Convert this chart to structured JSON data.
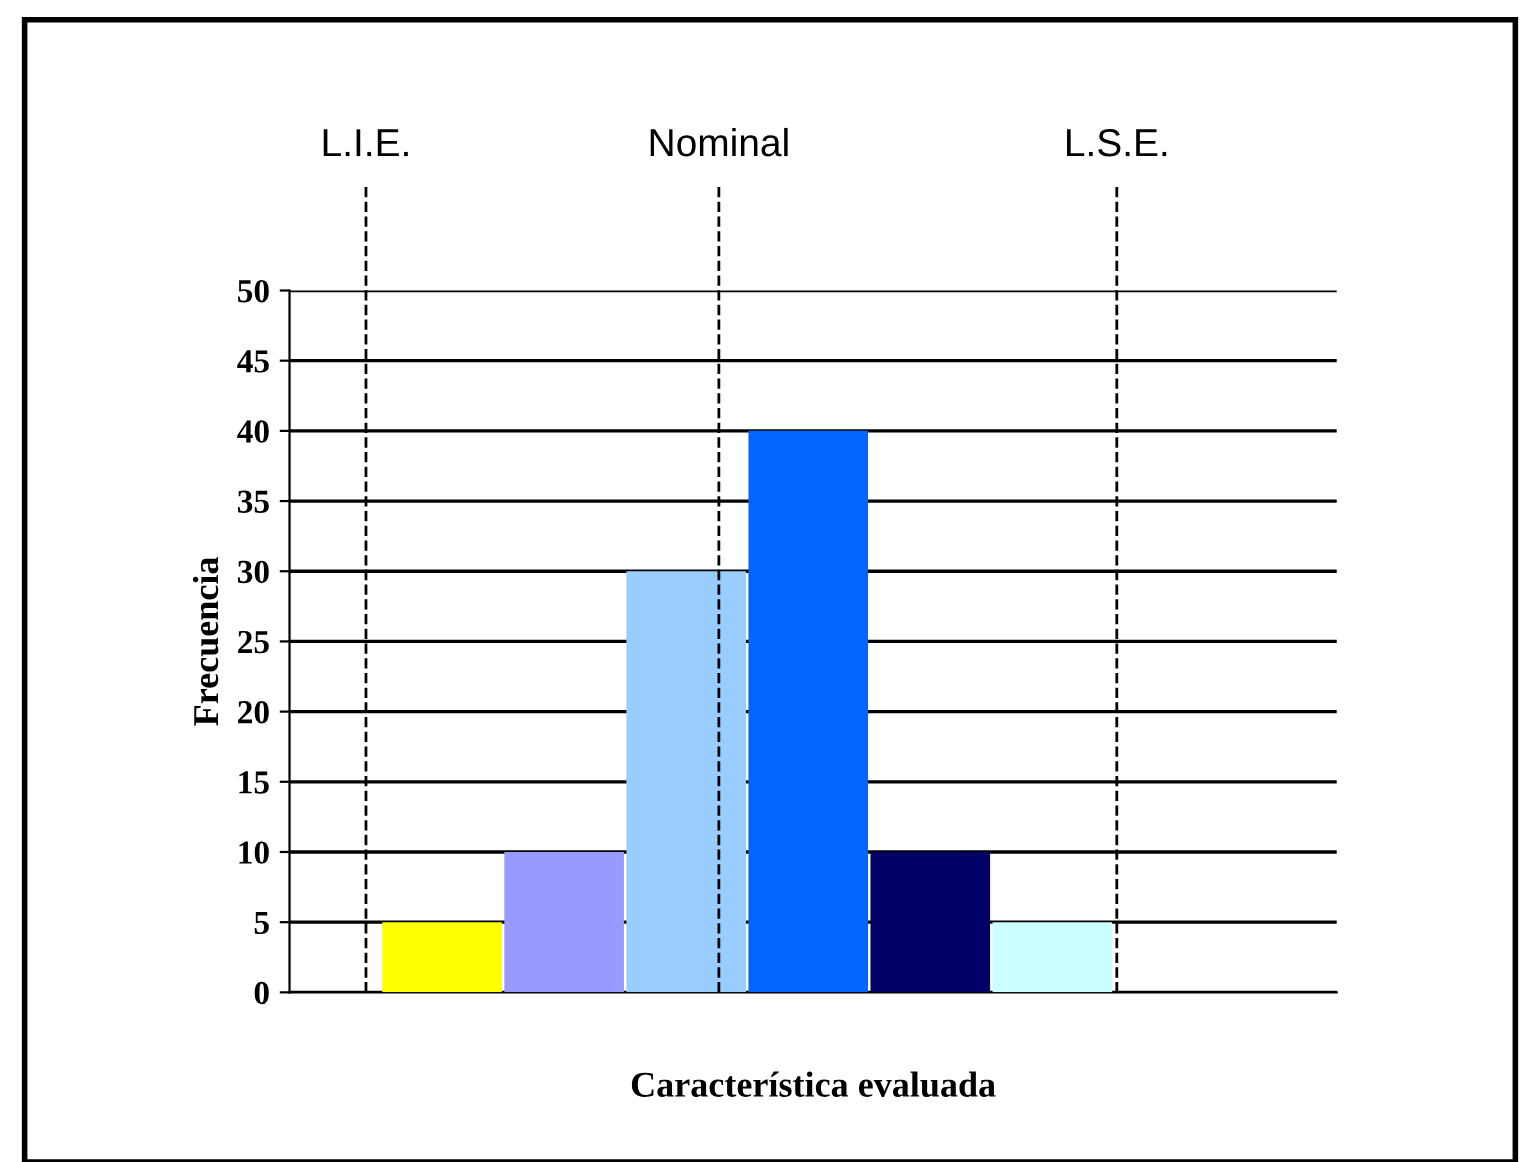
{
  "chart_data": {
    "type": "bar",
    "xlabel": "Característica evaluada",
    "ylabel": "Frecuencia",
    "categories": [
      null,
      null,
      null,
      null,
      null,
      null
    ],
    "values": [
      5,
      10,
      30,
      40,
      10,
      5
    ],
    "colors": [
      "#ffff00",
      "#9999ff",
      "#99ccff",
      "#0066ff",
      "#000066",
      "#ccffff"
    ],
    "ylim": [
      0,
      50
    ],
    "yticks": [
      0,
      5,
      10,
      15,
      20,
      25,
      30,
      35,
      40,
      45,
      50
    ],
    "grid": "y",
    "annotations": [
      "L.I.E.",
      "Nominal",
      "L.S.E."
    ]
  }
}
